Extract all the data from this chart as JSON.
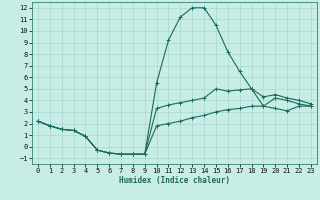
{
  "xlabel": "Humidex (Indice chaleur)",
  "bg_color": "#c8ece6",
  "line_color": "#1a6b5a",
  "grid_color": "#a0d4cc",
  "xlim": [
    -0.5,
    23.5
  ],
  "ylim": [
    -1.5,
    12.5
  ],
  "xticks": [
    0,
    1,
    2,
    3,
    4,
    5,
    6,
    7,
    8,
    9,
    10,
    11,
    12,
    13,
    14,
    15,
    16,
    17,
    18,
    19,
    20,
    21,
    22,
    23
  ],
  "yticks": [
    -1,
    0,
    1,
    2,
    3,
    4,
    5,
    6,
    7,
    8,
    9,
    10,
    11,
    12
  ],
  "line1_x": [
    0,
    1,
    2,
    3,
    4,
    5,
    6,
    7,
    8,
    9,
    10,
    11,
    12,
    13,
    14,
    15,
    16,
    17,
    18,
    19,
    20,
    21,
    22,
    23
  ],
  "line1_y": [
    2.2,
    1.8,
    1.5,
    1.4,
    0.9,
    -0.3,
    -0.55,
    -0.65,
    -0.65,
    -0.65,
    5.5,
    9.2,
    11.2,
    12.0,
    12.0,
    10.5,
    8.2,
    6.5,
    5.0,
    3.5,
    4.2,
    4.0,
    3.7,
    3.5
  ],
  "line2_x": [
    0,
    1,
    2,
    3,
    4,
    5,
    6,
    7,
    8,
    9,
    10,
    11,
    12,
    13,
    14,
    15,
    16,
    17,
    18,
    19,
    20,
    21,
    22,
    23
  ],
  "line2_y": [
    2.2,
    1.8,
    1.5,
    1.4,
    0.9,
    -0.3,
    -0.55,
    -0.65,
    -0.65,
    -0.65,
    3.3,
    3.6,
    3.8,
    4.0,
    4.2,
    5.0,
    4.8,
    4.9,
    5.0,
    4.3,
    4.5,
    4.2,
    4.0,
    3.7
  ],
  "line3_x": [
    0,
    1,
    2,
    3,
    4,
    5,
    6,
    7,
    8,
    9,
    10,
    11,
    12,
    13,
    14,
    15,
    16,
    17,
    18,
    19,
    20,
    21,
    22,
    23
  ],
  "line3_y": [
    2.2,
    1.8,
    1.5,
    1.4,
    0.9,
    -0.3,
    -0.55,
    -0.65,
    -0.65,
    -0.65,
    1.8,
    2.0,
    2.2,
    2.5,
    2.7,
    3.0,
    3.2,
    3.3,
    3.5,
    3.5,
    3.3,
    3.1,
    3.5,
    3.5
  ],
  "marker": "+",
  "markersize": 3,
  "linewidth": 0.8,
  "tick_fontsize": 5.0,
  "xlabel_fontsize": 5.5
}
